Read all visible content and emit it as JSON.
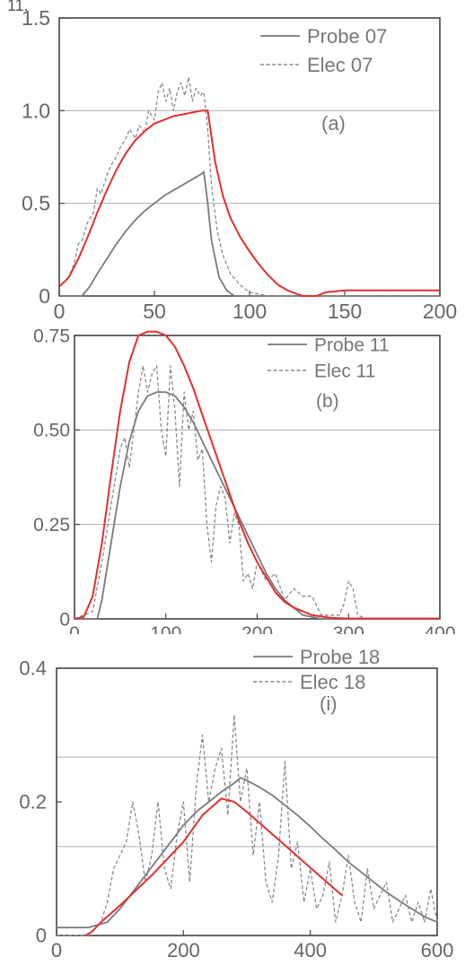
{
  "header": {
    "label": "11."
  },
  "colors": {
    "probe": "#7a7a7a",
    "elec": "#8a8a8a",
    "fit": "#e03030",
    "grid": "#b0b0b0",
    "frame": "#444444",
    "text": "#666666"
  },
  "chart_data": [
    {
      "type": "line",
      "annotation": "(a)",
      "xlim": [
        0,
        200
      ],
      "ylim": [
        0,
        1.5
      ],
      "xticks": [
        "0",
        "50",
        "100",
        "150",
        "200"
      ],
      "yticks": [
        "0",
        "0.5",
        "1.0",
        "1.5"
      ],
      "xticks_values": [
        0,
        50,
        100,
        150,
        200
      ],
      "yticks_values": [
        0,
        0.5,
        1.0,
        1.5
      ],
      "hgrid": [
        0.5,
        1.0
      ],
      "series": [
        {
          "name": "Probe 07",
          "style": "solid",
          "x": [
            0,
            12,
            16,
            20,
            25,
            30,
            35,
            40,
            45,
            50,
            55,
            60,
            65,
            70,
            75,
            76,
            78,
            80,
            84,
            88,
            92,
            100,
            200
          ],
          "y": [
            0,
            0,
            0.05,
            0.12,
            0.2,
            0.28,
            0.35,
            0.41,
            0.46,
            0.5,
            0.54,
            0.57,
            0.6,
            0.63,
            0.66,
            0.67,
            0.5,
            0.3,
            0.1,
            0.03,
            0,
            0,
            0
          ]
        },
        {
          "name": "Elec 07",
          "style": "dashed",
          "x": [
            0,
            5,
            8,
            10,
            12,
            15,
            18,
            20,
            22,
            25,
            27,
            30,
            32,
            35,
            37,
            40,
            42,
            45,
            47,
            50,
            52,
            54,
            56,
            58,
            60,
            62,
            64,
            66,
            68,
            70,
            72,
            74,
            76,
            78,
            80,
            83,
            86,
            90,
            95,
            100,
            105,
            110,
            200
          ],
          "y": [
            0.05,
            0.1,
            0.18,
            0.28,
            0.3,
            0.4,
            0.45,
            0.58,
            0.55,
            0.65,
            0.7,
            0.75,
            0.8,
            0.85,
            0.9,
            0.85,
            0.92,
            0.88,
            1.0,
            0.95,
            1.1,
            1.15,
            1.05,
            1.12,
            1.0,
            1.1,
            1.15,
            1.08,
            1.18,
            1.05,
            1.12,
            1.08,
            1.1,
            0.9,
            0.6,
            0.35,
            0.22,
            0.12,
            0.06,
            0.02,
            0.01,
            0,
            0
          ]
        },
        {
          "name": "",
          "style": "fit",
          "x": [
            0,
            5,
            10,
            15,
            20,
            25,
            30,
            35,
            40,
            45,
            50,
            55,
            60,
            65,
            70,
            75,
            77,
            78,
            82,
            86,
            90,
            95,
            100,
            105,
            110,
            115,
            120,
            125,
            128,
            135,
            140,
            150,
            175,
            200
          ],
          "y": [
            0.05,
            0.1,
            0.2,
            0.32,
            0.45,
            0.57,
            0.68,
            0.77,
            0.84,
            0.89,
            0.93,
            0.95,
            0.97,
            0.98,
            0.99,
            1.0,
            1.0,
            1.0,
            0.72,
            0.54,
            0.42,
            0.32,
            0.24,
            0.17,
            0.11,
            0.06,
            0.03,
            0.01,
            0.0,
            0.0,
            0.02,
            0.03,
            0.03,
            0.03
          ]
        }
      ]
    },
    {
      "type": "line",
      "annotation": "(b)",
      "xlim": [
        0,
        400
      ],
      "ylim": [
        0,
        0.75
      ],
      "xticks": [
        "0",
        "100",
        "200",
        "300",
        "400"
      ],
      "yticks": [
        "0",
        "0.25",
        "0.50",
        "0.75"
      ],
      "xticks_values": [
        0,
        100,
        200,
        300,
        400
      ],
      "yticks_values": [
        0,
        0.25,
        0.5,
        0.75
      ],
      "hgrid": [
        0.25,
        0.5
      ],
      "series": [
        {
          "name": "Probe 11",
          "style": "solid",
          "x": [
            0,
            25,
            30,
            40,
            50,
            60,
            70,
            80,
            90,
            100,
            110,
            120,
            130,
            140,
            150,
            160,
            170,
            180,
            190,
            200,
            210,
            220,
            230,
            240,
            250,
            260,
            270,
            400
          ],
          "y": [
            0,
            0,
            0.05,
            0.2,
            0.35,
            0.47,
            0.55,
            0.59,
            0.6,
            0.6,
            0.59,
            0.56,
            0.52,
            0.47,
            0.42,
            0.37,
            0.32,
            0.27,
            0.22,
            0.17,
            0.12,
            0.08,
            0.05,
            0.03,
            0.01,
            0.005,
            0,
            0
          ]
        },
        {
          "name": "Elec 11",
          "style": "dashed",
          "x": [
            0,
            20,
            30,
            40,
            50,
            55,
            60,
            70,
            75,
            80,
            85,
            90,
            95,
            100,
            105,
            110,
            115,
            120,
            125,
            130,
            135,
            140,
            145,
            150,
            155,
            160,
            165,
            170,
            175,
            180,
            185,
            190,
            195,
            200,
            210,
            220,
            230,
            240,
            250,
            260,
            270,
            290,
            295,
            300,
            305,
            310,
            320,
            400
          ],
          "y": [
            0,
            0.02,
            0.15,
            0.3,
            0.45,
            0.48,
            0.4,
            0.6,
            0.67,
            0.6,
            0.65,
            0.67,
            0.5,
            0.43,
            0.67,
            0.55,
            0.35,
            0.6,
            0.5,
            0.55,
            0.42,
            0.45,
            0.25,
            0.15,
            0.3,
            0.35,
            0.32,
            0.2,
            0.28,
            0.25,
            0.1,
            0.12,
            0.08,
            0.15,
            0.1,
            0.12,
            0.05,
            0.08,
            0.06,
            0.06,
            0.01,
            0.01,
            0.04,
            0.1,
            0.08,
            0.01,
            0,
            0
          ]
        },
        {
          "name": "",
          "style": "fit",
          "x": [
            0,
            10,
            20,
            30,
            40,
            50,
            60,
            70,
            80,
            90,
            100,
            110,
            120,
            130,
            140,
            150,
            160,
            170,
            180,
            190,
            200,
            210,
            220,
            230,
            240,
            250,
            260,
            280,
            300,
            350,
            400
          ],
          "y": [
            0,
            0.005,
            0.06,
            0.2,
            0.38,
            0.55,
            0.68,
            0.75,
            0.76,
            0.76,
            0.75,
            0.72,
            0.67,
            0.61,
            0.54,
            0.47,
            0.4,
            0.33,
            0.26,
            0.2,
            0.15,
            0.11,
            0.07,
            0.045,
            0.03,
            0.02,
            0.01,
            0.003,
            0.001,
            0.001,
            0.001
          ]
        }
      ]
    },
    {
      "type": "line",
      "annotation": "(i)",
      "xlim": [
        0,
        600
      ],
      "ylim": [
        0,
        0.4
      ],
      "xticks": [
        "0",
        "200",
        "400",
        "600"
      ],
      "yticks": [
        "0",
        "0.2",
        "0.4"
      ],
      "xticks_values": [
        0,
        200,
        400,
        600
      ],
      "yticks_values": [
        0,
        0.2,
        0.4
      ],
      "hgrid": [
        0.133,
        0.267
      ],
      "series": [
        {
          "name": "Probe 18",
          "style": "solid",
          "x": [
            0,
            50,
            80,
            100,
            120,
            140,
            160,
            180,
            200,
            220,
            240,
            260,
            280,
            290,
            300,
            320,
            340,
            360,
            380,
            400,
            420,
            440,
            460,
            480,
            500,
            520,
            540,
            560,
            580,
            600
          ],
          "y": [
            0.012,
            0.012,
            0.02,
            0.04,
            0.065,
            0.09,
            0.115,
            0.14,
            0.165,
            0.185,
            0.2,
            0.215,
            0.228,
            0.236,
            0.232,
            0.222,
            0.21,
            0.195,
            0.18,
            0.163,
            0.145,
            0.128,
            0.11,
            0.095,
            0.08,
            0.065,
            0.052,
            0.04,
            0.028,
            0.02
          ]
        },
        {
          "name": "Elec 18",
          "style": "dashed",
          "x": [
            0,
            50,
            60,
            70,
            80,
            90,
            100,
            110,
            120,
            130,
            140,
            150,
            160,
            170,
            180,
            190,
            200,
            210,
            220,
            230,
            240,
            250,
            260,
            270,
            280,
            290,
            300,
            310,
            320,
            330,
            340,
            350,
            360,
            370,
            380,
            390,
            400,
            410,
            420,
            430,
            440,
            450,
            460,
            470,
            480,
            490,
            500,
            510,
            520,
            530,
            540,
            550,
            560,
            570,
            580,
            590,
            600
          ],
          "y": [
            0,
            0,
            0.01,
            0.02,
            0.05,
            0.1,
            0.12,
            0.14,
            0.2,
            0.15,
            0.08,
            0.12,
            0.2,
            0.1,
            0.07,
            0.15,
            0.2,
            0.08,
            0.22,
            0.3,
            0.2,
            0.25,
            0.28,
            0.18,
            0.33,
            0.2,
            0.25,
            0.12,
            0.2,
            0.08,
            0.05,
            0.12,
            0.26,
            0.1,
            0.14,
            0.05,
            0.1,
            0.04,
            0.06,
            0.11,
            0.02,
            0.06,
            0.12,
            0.05,
            0.02,
            0.1,
            0.04,
            0.06,
            0.08,
            0.02,
            0.04,
            0.06,
            0.02,
            0.05,
            0.02,
            0.07,
            0.02
          ]
        },
        {
          "name": "",
          "style": "fit",
          "x": [
            45,
            55,
            70,
            100,
            150,
            200,
            230,
            260,
            280,
            300,
            330,
            360,
            390,
            420,
            450
          ],
          "y": [
            0,
            0.005,
            0.02,
            0.045,
            0.09,
            0.14,
            0.18,
            0.205,
            0.2,
            0.185,
            0.16,
            0.135,
            0.11,
            0.085,
            0.06
          ]
        }
      ]
    }
  ]
}
